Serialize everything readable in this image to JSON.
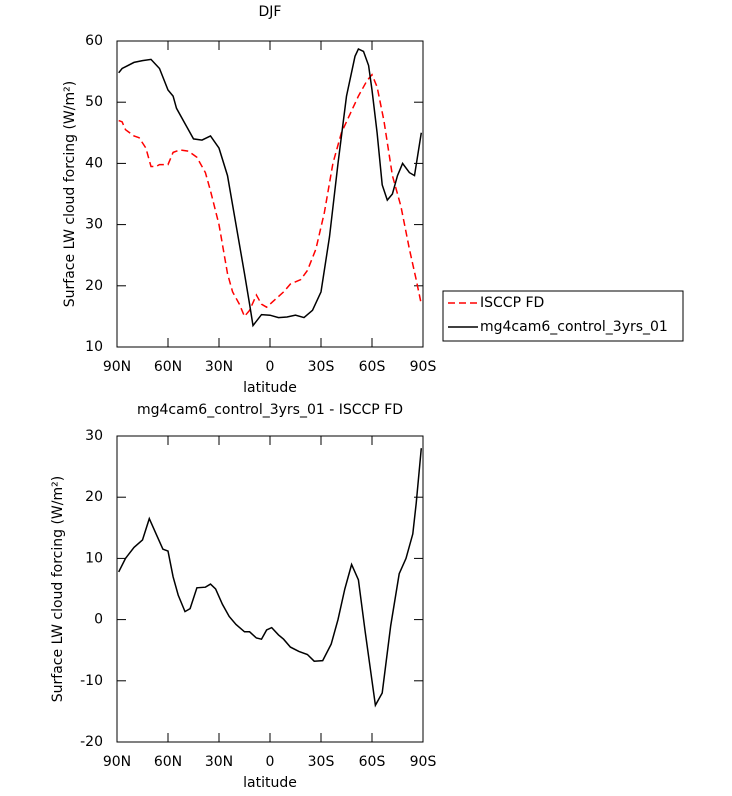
{
  "chart_data": [
    {
      "type": "line",
      "title": "DJF",
      "xlabel": "latitude",
      "ylabel": "Surface LW cloud forcing (W/m²)",
      "xlim": [
        90,
        -90
      ],
      "xticks": [
        {
          "value": 90,
          "label": "90N"
        },
        {
          "value": 60,
          "label": "60N"
        },
        {
          "value": 30,
          "label": "30N"
        },
        0,
        {
          "value": -30,
          "label": "30S"
        },
        {
          "value": -60,
          "label": "60S"
        },
        {
          "value": -90,
          "label": "90S"
        }
      ],
      "ylim": [
        10,
        60
      ],
      "yticks": [
        10,
        20,
        30,
        40,
        50,
        60
      ],
      "legend": "outside right",
      "series": [
        {
          "name": "ISCCP FD",
          "color": "#ff0000",
          "linestyle": "dashed",
          "x": [
            89,
            87,
            85,
            80,
            77,
            73,
            70,
            67,
            65,
            60,
            57,
            53,
            48,
            43,
            38,
            35,
            30,
            25,
            22,
            18,
            15,
            12,
            8,
            5,
            2,
            -2,
            -8,
            -12,
            -18,
            -22,
            -27,
            -32,
            -37,
            -42,
            -47,
            -52,
            -57,
            -60,
            -63,
            -67,
            -72,
            -77,
            -82,
            -86,
            -89
          ],
          "values": [
            47,
            46.8,
            45.5,
            44.5,
            44.2,
            42.5,
            39.5,
            39.5,
            39.8,
            39.8,
            41.8,
            42.2,
            42,
            41,
            38.5,
            35.5,
            30,
            22,
            19,
            17,
            15,
            16,
            18.5,
            17,
            16.5,
            17.5,
            19,
            20.3,
            21,
            22.5,
            26,
            32,
            40,
            45,
            48,
            51,
            53.5,
            54.5,
            52.5,
            47,
            38,
            33,
            26,
            21,
            17
          ]
        },
        {
          "name": "mg4cam6_control_3yrs_01",
          "color": "#000000",
          "linestyle": "solid",
          "x": [
            89,
            87,
            80,
            75,
            70,
            65,
            60,
            57,
            55,
            50,
            45,
            40,
            35,
            30,
            25,
            20,
            15,
            12,
            10,
            5,
            0,
            -5,
            -10,
            -15,
            -20,
            -25,
            -30,
            -35,
            -40,
            -45,
            -50,
            -52,
            -55,
            -58,
            -60,
            -63,
            -66,
            -69,
            -72,
            -75,
            -78,
            -82,
            -85,
            -89
          ],
          "values": [
            54.8,
            55.5,
            56.5,
            56.8,
            57,
            55.5,
            52,
            51,
            49,
            46.5,
            44,
            43.8,
            44.5,
            42.5,
            38,
            30,
            22,
            17,
            13.5,
            15.3,
            15.2,
            14.8,
            14.9,
            15.2,
            14.8,
            16,
            19,
            28,
            40,
            51,
            57.5,
            58.7,
            58.3,
            56,
            52,
            45,
            36.5,
            34,
            35,
            38,
            40,
            38.5,
            38,
            45
          ]
        }
      ]
    },
    {
      "type": "line",
      "title": "mg4cam6_control_3yrs_01 - ISCCP FD",
      "xlabel": "latitude",
      "ylabel": "Surface LW cloud forcing (W/m²)",
      "xlim": [
        90,
        -90
      ],
      "xticks": [
        {
          "value": 90,
          "label": "90N"
        },
        {
          "value": 60,
          "label": "60N"
        },
        {
          "value": 30,
          "label": "30N"
        },
        0,
        {
          "value": -30,
          "label": "30S"
        },
        {
          "value": -60,
          "label": "60S"
        },
        {
          "value": -90,
          "label": "90S"
        }
      ],
      "ylim": [
        -20,
        30
      ],
      "yticks": [
        -20,
        -10,
        0,
        10,
        20,
        30
      ],
      "color": "#000000",
      "x": [
        89,
        85,
        80,
        75,
        71,
        67,
        63,
        60,
        57,
        54,
        50,
        47,
        43,
        38,
        35,
        32,
        28,
        24,
        20,
        15,
        12,
        8,
        5,
        2,
        -1,
        -5,
        -8,
        -12,
        -17,
        -22,
        -26,
        -31,
        -36,
        -40,
        -44,
        -48,
        -52,
        -56,
        -60,
        -62,
        -66,
        -71,
        -76,
        -80,
        -84,
        -86,
        -89
      ],
      "values": [
        7.8,
        10,
        11.8,
        13,
        16.5,
        14,
        11.5,
        11.2,
        7,
        4,
        1.3,
        1.8,
        5.2,
        5.3,
        5.8,
        5,
        2.5,
        0.5,
        -0.8,
        -2,
        -2,
        -3,
        -3.2,
        -1.7,
        -1.3,
        -2.5,
        -3.2,
        -4.5,
        -5.2,
        -5.7,
        -6.8,
        -6.7,
        -4,
        0,
        5,
        9,
        6.5,
        -2,
        -10,
        -14,
        -12,
        -1,
        7.5,
        10,
        14,
        19,
        28
      ]
    }
  ]
}
